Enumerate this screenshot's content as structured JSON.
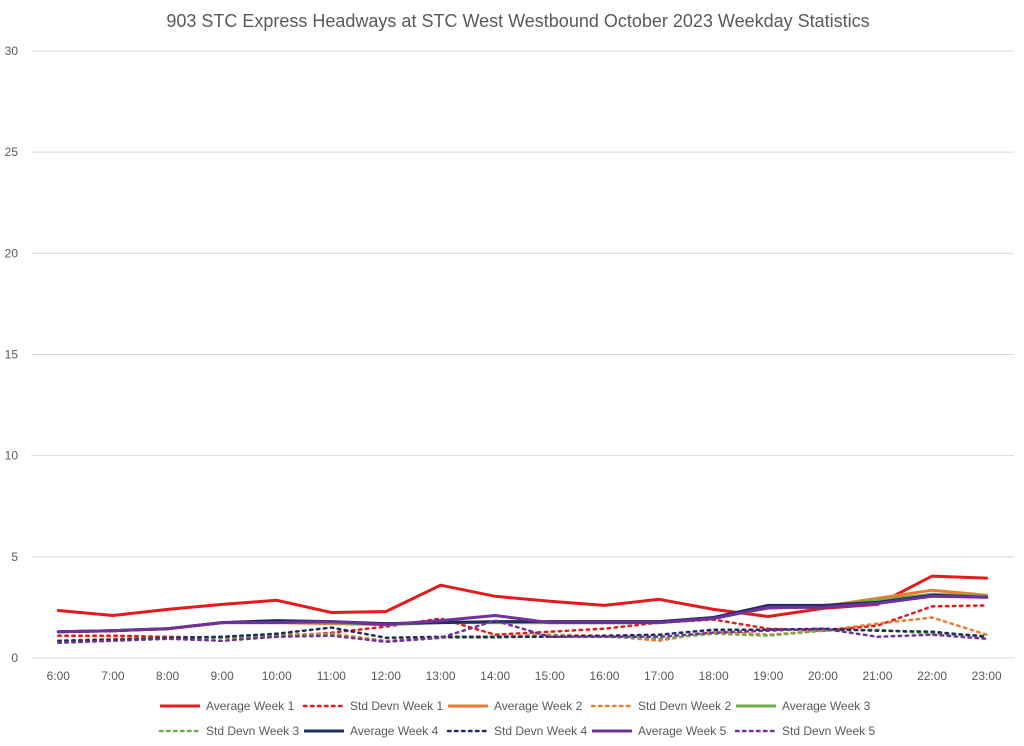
{
  "chart_data": {
    "type": "line",
    "title": "903 STC Express Headways at STC West Westbound October 2023 Weekday Statistics",
    "xlabel": "",
    "ylabel": "",
    "ylim": [
      0,
      30
    ],
    "yticks": [
      0,
      5,
      10,
      15,
      20,
      25,
      30
    ],
    "grid": true,
    "legend_position": "bottom",
    "categories": [
      "6:00",
      "7:00",
      "8:00",
      "9:00",
      "10:00",
      "11:00",
      "12:00",
      "13:00",
      "14:00",
      "15:00",
      "16:00",
      "17:00",
      "18:00",
      "19:00",
      "20:00",
      "21:00",
      "22:00",
      "23:00"
    ],
    "series": [
      {
        "name": "Average Week 1",
        "color": "#e41a1c",
        "style": "solid",
        "values": [
          2.35,
          2.1,
          2.4,
          2.65,
          2.85,
          2.25,
          2.3,
          3.6,
          3.05,
          2.8,
          2.6,
          2.9,
          2.4,
          2.05,
          2.45,
          2.65,
          4.05,
          3.95
        ]
      },
      {
        "name": "Std Devn Week 1",
        "color": "#e41a1c",
        "style": "dotted",
        "values": [
          1.1,
          1.1,
          1.05,
          1.0,
          1.05,
          1.25,
          1.55,
          1.95,
          1.15,
          1.3,
          1.45,
          1.75,
          1.9,
          1.45,
          1.35,
          1.6,
          2.55,
          2.6
        ]
      },
      {
        "name": "Average Week 2",
        "color": "#ed7d31",
        "style": "solid",
        "values": [
          1.3,
          1.35,
          1.45,
          1.75,
          1.75,
          1.7,
          1.65,
          1.8,
          1.75,
          1.75,
          1.75,
          1.75,
          2.0,
          2.45,
          2.55,
          2.95,
          3.35,
          3.1
        ]
      },
      {
        "name": "Std Devn Week 2",
        "color": "#ed7d31",
        "style": "dotted",
        "values": [
          0.85,
          0.95,
          1.0,
          1.0,
          1.15,
          1.2,
          0.85,
          1.05,
          1.05,
          1.15,
          1.1,
          0.85,
          1.3,
          1.15,
          1.35,
          1.7,
          2.0,
          1.15
        ]
      },
      {
        "name": "Average Week 3",
        "color": "#70ad47",
        "style": "solid",
        "values": [
          1.3,
          1.35,
          1.45,
          1.75,
          1.8,
          1.75,
          1.65,
          1.75,
          1.75,
          1.75,
          1.75,
          1.75,
          1.95,
          2.5,
          2.55,
          2.85,
          3.15,
          3.05
        ]
      },
      {
        "name": "Std Devn Week 3",
        "color": "#70ad47",
        "style": "dotted",
        "values": [
          0.8,
          0.9,
          0.95,
          1.0,
          1.1,
          1.15,
          0.8,
          1.0,
          1.0,
          1.1,
          1.05,
          0.95,
          1.2,
          1.1,
          1.35,
          1.4,
          1.2,
          1.1
        ]
      },
      {
        "name": "Average Week 4",
        "color": "#1f2d5c",
        "style": "solid",
        "values": [
          1.3,
          1.35,
          1.45,
          1.75,
          1.85,
          1.8,
          1.7,
          1.75,
          1.8,
          1.8,
          1.8,
          1.8,
          2.0,
          2.6,
          2.6,
          2.75,
          3.1,
          3.0
        ]
      },
      {
        "name": "Std Devn Week 4",
        "color": "#1f2d5c",
        "style": "dotted",
        "values": [
          0.85,
          0.9,
          1.0,
          1.05,
          1.2,
          1.5,
          1.0,
          1.05,
          1.05,
          1.05,
          1.1,
          1.15,
          1.4,
          1.4,
          1.45,
          1.35,
          1.3,
          1.05
        ]
      },
      {
        "name": "Average Week 5",
        "color": "#7030a0",
        "style": "solid",
        "values": [
          1.3,
          1.35,
          1.45,
          1.75,
          1.75,
          1.8,
          1.65,
          1.85,
          2.1,
          1.75,
          1.75,
          1.75,
          1.95,
          2.5,
          2.5,
          2.7,
          3.05,
          3.0
        ]
      },
      {
        "name": "Std Devn Week 5",
        "color": "#7030a0",
        "style": "dotted",
        "values": [
          0.75,
          0.85,
          0.95,
          0.85,
          1.05,
          1.1,
          0.8,
          1.0,
          1.85,
          1.05,
          1.05,
          1.05,
          1.25,
          1.35,
          1.45,
          1.05,
          1.15,
          0.95
        ]
      }
    ]
  }
}
